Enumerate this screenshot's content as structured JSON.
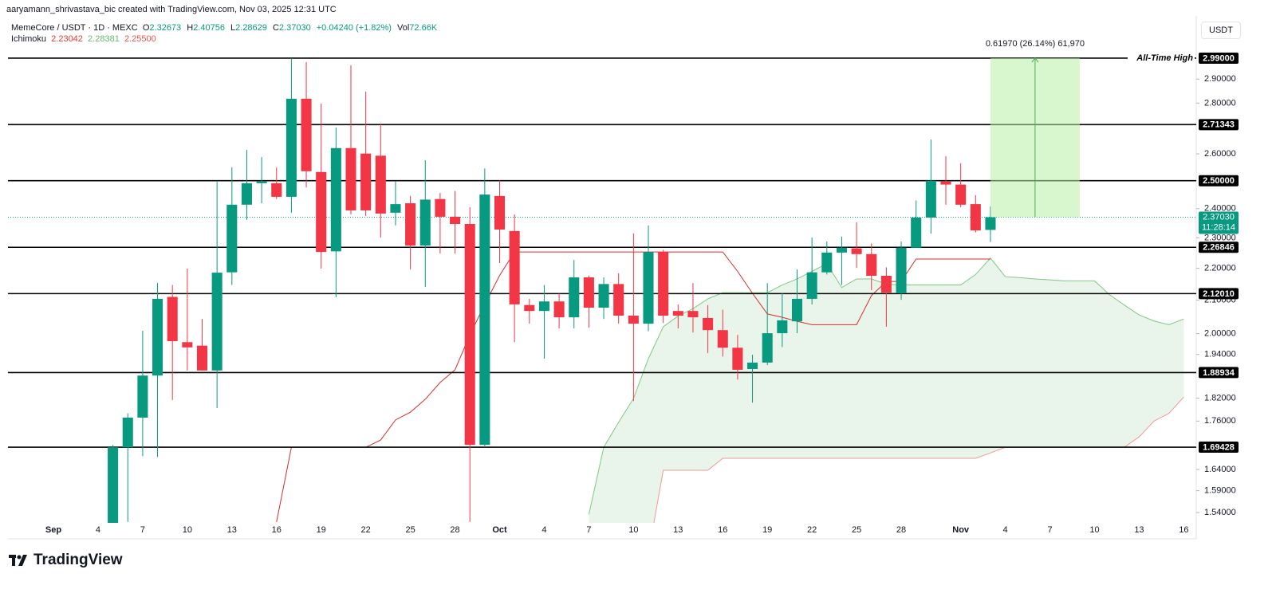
{
  "header": {
    "credit": "aaryamann_shrivastava_bic created with TradingView.com, Nov 03, 2025 12:31 UTC",
    "symbol": "MemeCore / USDT · 1D · MEXC",
    "quote": [
      [
        "O",
        "2.32673"
      ],
      [
        "H",
        "2.40756"
      ],
      [
        "L",
        "2.28629"
      ],
      [
        "C",
        "2.37030"
      ]
    ],
    "change": "+0.04240 (+1.82%)",
    "volume_prefix": "Vol",
    "volume": "72.66K",
    "indicator": "Ichimoku",
    "indicator_values": [
      "2.23042",
      "2.28381",
      "2.25500"
    ],
    "currency_button": "USDT",
    "logo": "TradingView"
  },
  "chart_data": {
    "type": "candlestick",
    "log_scale": true,
    "up_color": "#089981",
    "down_color": "#f23645",
    "categories": [
      null,
      null,
      null,
      "Sep",
      null,
      null,
      "4",
      null,
      null,
      "7",
      null,
      null,
      "10",
      null,
      null,
      "13",
      null,
      null,
      "16",
      null,
      null,
      "19",
      null,
      null,
      "22",
      null,
      null,
      "25",
      null,
      null,
      "28",
      null,
      null,
      "Oct",
      null,
      null,
      "4",
      null,
      null,
      "7",
      null,
      null,
      "10",
      null,
      null,
      "13",
      null,
      null,
      "16",
      null,
      null,
      "19",
      null,
      null,
      "22",
      null,
      null,
      "25",
      null,
      null,
      "28",
      null,
      null,
      null,
      "Nov",
      null,
      null,
      "4",
      null,
      null,
      "7",
      null,
      null,
      "10",
      null,
      null,
      "13",
      null,
      null,
      "16"
    ],
    "open": [
      null,
      null,
      null,
      null,
      null,
      null,
      null,
      1.44,
      1.694,
      1.769,
      1.881,
      2.11,
      1.975,
      1.965,
      1.895,
      2.187,
      2.414,
      2.491,
      2.491,
      2.442,
      2.818,
      2.532,
      2.255,
      2.622,
      2.601,
      2.593,
      2.386,
      2.419,
      2.274,
      2.434,
      2.372,
      2.347,
      1.7,
      2.445,
      2.323,
      2.085,
      2.067,
      2.096,
      2.048,
      2.171,
      2.077,
      2.15,
      2.053,
      2.029,
      2.253,
      2.067,
      2.067,
      2.046,
      2.01,
      1.959,
      1.899,
      1.917,
      2.001,
      2.036,
      2.104,
      2.187,
      2.251,
      2.265,
      2.246,
      2.176,
      2.121,
      2.267,
      2.369,
      2.497,
      2.486,
      2.416,
      2.32673,
      null,
      null,
      null,
      null,
      null,
      null,
      null,
      null,
      null,
      null,
      null,
      null,
      null
    ],
    "high": [
      null,
      null,
      null,
      null,
      null,
      null,
      null,
      1.7,
      1.78,
      2.008,
      2.153,
      2.147,
      2.199,
      2.043,
      2.496,
      2.549,
      2.615,
      2.588,
      2.549,
      2.99,
      2.973,
      2.798,
      2.702,
      2.959,
      2.847,
      2.718,
      2.499,
      2.445,
      2.576,
      2.456,
      2.463,
      2.405,
      2.545,
      2.501,
      2.38,
      2.104,
      2.147,
      2.12,
      2.227,
      2.177,
      2.171,
      2.184,
      2.315,
      2.342,
      2.26,
      2.087,
      2.153,
      2.085,
      2.071,
      1.996,
      1.939,
      2.153,
      2.122,
      2.196,
      2.301,
      2.288,
      2.304,
      2.353,
      2.281,
      2.203,
      2.288,
      2.429,
      2.655,
      2.591,
      2.565,
      2.448,
      2.40756,
      null,
      null,
      null,
      null,
      null,
      null,
      null,
      null,
      null,
      null,
      null,
      null,
      null
    ],
    "low": [
      null,
      null,
      null,
      null,
      null,
      null,
      null,
      1.4,
      1.519,
      1.672,
      1.67,
      1.815,
      1.895,
      1.895,
      1.794,
      2.147,
      2.361,
      2.419,
      2.434,
      2.386,
      2.476,
      2.199,
      2.109,
      2.38,
      2.375,
      2.301,
      2.342,
      2.196,
      2.141,
      2.248,
      2.248,
      1.519,
      1.694,
      2.217,
      1.975,
      2.029,
      1.928,
      2.015,
      2.015,
      2.017,
      2.043,
      2.029,
      1.812,
      2.007,
      2.031,
      2.015,
      2.003,
      1.944,
      1.934,
      1.87,
      1.808,
      1.91,
      1.961,
      2.001,
      2.087,
      2.18,
      2.147,
      2.201,
      2.131,
      2.02,
      2.101,
      2.267,
      2.314,
      2.414,
      2.405,
      2.318,
      2.28629,
      null,
      null,
      null,
      null,
      null,
      null,
      null,
      null,
      null,
      null,
      null,
      null,
      null
    ],
    "close": [
      null,
      null,
      null,
      null,
      null,
      null,
      null,
      1.694,
      1.769,
      1.881,
      2.104,
      1.978,
      1.96,
      1.895,
      2.186,
      2.414,
      2.491,
      2.497,
      2.442,
      2.818,
      2.535,
      2.253,
      2.622,
      2.394,
      2.394,
      2.383,
      2.416,
      2.274,
      2.432,
      2.372,
      2.347,
      1.7,
      2.45,
      2.328,
      2.087,
      2.067,
      2.096,
      2.048,
      2.171,
      2.077,
      2.15,
      2.053,
      2.029,
      2.253,
      2.053,
      2.053,
      2.048,
      2.01,
      1.959,
      1.897,
      1.917,
      2.001,
      2.039,
      2.104,
      2.187,
      2.251,
      2.267,
      2.246,
      2.176,
      2.123,
      2.267,
      2.369,
      2.5,
      2.486,
      2.414,
      2.325,
      2.3703,
      null,
      null,
      null,
      null,
      null,
      null,
      null,
      null,
      null,
      null,
      null,
      null,
      null
    ],
    "ichimoku": {
      "base_color": "#d32f2f",
      "lead_a_color": "#81c784",
      "lead_b_color": "#ef9a9a",
      "cloud_color": "#4caf50",
      "base": [
        null,
        null,
        null,
        null,
        null,
        null,
        null,
        null,
        null,
        null,
        null,
        null,
        null,
        null,
        null,
        null,
        null,
        null,
        1.519,
        1.694,
        1.694,
        1.694,
        1.694,
        1.694,
        1.694,
        1.712,
        1.763,
        1.783,
        1.817,
        1.862,
        1.897,
        1.996,
        2.087,
        2.177,
        2.253,
        2.253,
        2.253,
        2.253,
        2.253,
        2.253,
        2.253,
        2.253,
        2.253,
        2.253,
        2.253,
        2.253,
        2.253,
        2.253,
        2.253,
        2.19,
        2.121,
        2.058,
        2.048,
        2.036,
        2.026,
        2.026,
        2.026,
        2.026,
        2.114,
        2.158,
        2.158,
        2.23,
        2.23,
        2.23,
        2.23,
        2.23,
        2.23,
        null,
        null,
        null,
        null,
        null,
        null,
        null,
        null,
        null,
        null,
        null,
        null,
        null
      ],
      "lead_a": [
        null,
        null,
        null,
        null,
        null,
        null,
        null,
        null,
        null,
        null,
        null,
        null,
        null,
        null,
        null,
        null,
        null,
        null,
        null,
        null,
        null,
        null,
        null,
        null,
        null,
        null,
        null,
        null,
        null,
        null,
        null,
        null,
        null,
        null,
        null,
        null,
        null,
        null,
        null,
        1.536,
        1.694,
        1.757,
        1.819,
        1.928,
        2.02,
        2.052,
        2.074,
        2.104,
        2.123,
        2.123,
        2.123,
        2.123,
        2.147,
        2.166,
        2.19,
        2.215,
        2.139,
        2.166,
        2.166,
        2.15,
        2.147,
        2.147,
        2.147,
        2.147,
        2.147,
        2.18,
        2.233,
        2.173,
        2.17,
        2.166,
        2.163,
        2.16,
        2.16,
        2.16,
        2.117,
        2.085,
        2.055,
        2.037,
        2.026,
        2.043
      ],
      "lead_b": [
        null,
        null,
        null,
        null,
        null,
        null,
        null,
        null,
        null,
        null,
        null,
        null,
        null,
        null,
        null,
        null,
        null,
        null,
        null,
        null,
        null,
        null,
        null,
        null,
        null,
        null,
        null,
        null,
        null,
        null,
        null,
        null,
        null,
        null,
        null,
        null,
        null,
        null,
        null,
        1.4,
        1.4,
        1.4,
        1.4,
        1.45,
        1.638,
        1.638,
        1.638,
        1.638,
        1.667,
        1.667,
        1.667,
        1.667,
        1.667,
        1.667,
        1.667,
        1.667,
        1.667,
        1.667,
        1.667,
        1.667,
        1.667,
        1.667,
        1.667,
        1.667,
        1.667,
        1.667,
        1.68,
        1.694,
        1.694,
        1.694,
        1.694,
        1.694,
        1.694,
        1.694,
        1.694,
        1.694,
        1.72,
        1.76,
        1.78,
        1.823
      ]
    },
    "ylim": [
      1.517,
      3.18
    ],
    "yticks": [
      {
        "value": 2.9,
        "label": "2.90000"
      },
      {
        "value": 2.8,
        "label": "2.80000"
      },
      {
        "value": 2.6,
        "label": "2.60000"
      },
      {
        "value": 2.4,
        "label": "2.40000"
      },
      {
        "value": 2.3,
        "label": "2.30000"
      },
      {
        "value": 2.2,
        "label": "2.20000"
      },
      {
        "value": 2.1,
        "label": "2.10000"
      },
      {
        "value": 2.0,
        "label": "2.00000"
      },
      {
        "value": 1.94,
        "label": "1.94000"
      },
      {
        "value": 1.82,
        "label": "1.82000"
      },
      {
        "value": 1.76,
        "label": "1.76000"
      },
      {
        "value": 1.64,
        "label": "1.64000"
      },
      {
        "value": 1.59,
        "label": "1.59000"
      },
      {
        "value": 1.54,
        "label": "1.54000"
      }
    ],
    "levels": [
      {
        "value": 2.99,
        "label": "2.99000"
      },
      2.71343,
      {
        "value": 2.5,
        "label": "2.50000"
      },
      2.26846,
      {
        "value": 2.1201,
        "label": "2.12010"
      },
      1.88934,
      1.69428
    ],
    "level_color": "#000000",
    "ath_label": "All-Time High",
    "current_price": {
      "value": 2.3703,
      "label": "2.37030"
    },
    "countdown": "11:28:14",
    "measure_label": "0.61970 (26.14%) 61,970",
    "measure_color": "#4caf50"
  }
}
